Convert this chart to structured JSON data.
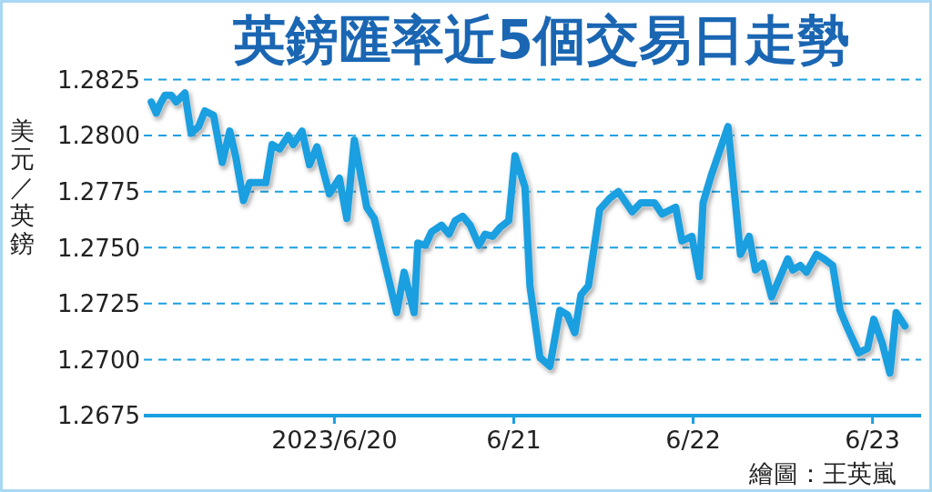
{
  "chart_data": {
    "type": "line",
    "title": "英鎊匯率近5個交易日走勢",
    "ylabel": "美元／英鎊",
    "annotations": [
      "繪圖：王英嵐"
    ],
    "x": [
      "2023-06-18T23:30",
      "2023-06-19T00:10",
      "2023-06-19T00:40",
      "2023-06-19T01:20",
      "2023-06-19T02:10",
      "2023-06-19T02:50",
      "2023-06-19T04:00",
      "2023-06-19T04:50",
      "2023-06-19T05:50",
      "2023-06-19T06:40",
      "2023-06-19T07:50",
      "2023-06-19T09:00",
      "2023-06-19T10:00",
      "2023-06-19T10:50",
      "2023-06-19T11:50",
      "2023-06-19T12:40",
      "2023-06-19T13:40",
      "2023-06-19T14:50",
      "2023-06-19T15:40",
      "2023-06-19T16:40",
      "2023-06-19T17:50",
      "2023-06-19T18:30",
      "2023-06-19T19:40",
      "2023-06-19T20:40",
      "2023-06-19T21:40",
      "2023-06-19T23:20",
      "2023-06-20T00:40",
      "2023-06-20T01:40",
      "2023-06-20T02:40",
      "2023-06-20T04:20",
      "2023-06-20T05:20",
      "2023-06-20T08:20",
      "2023-06-20T09:20",
      "2023-06-20T10:40",
      "2023-06-20T11:10",
      "2023-06-20T12:10",
      "2023-06-20T13:00",
      "2023-06-20T14:20",
      "2023-06-20T15:20",
      "2023-06-20T16:10",
      "2023-06-20T17:10",
      "2023-06-20T18:10",
      "2023-06-20T19:20",
      "2023-06-20T20:10",
      "2023-06-20T21:10",
      "2023-06-20T22:10",
      "2023-06-20T23:20",
      "2023-06-21T00:10",
      "2023-06-21T01:30",
      "2023-06-21T02:10",
      "2023-06-21T03:30",
      "2023-06-21T04:50",
      "2023-06-21T06:10",
      "2023-06-21T07:10",
      "2023-06-21T08:10",
      "2023-06-21T09:00",
      "2023-06-21T10:00",
      "2023-06-21T11:30",
      "2023-06-21T12:50",
      "2023-06-21T14:00",
      "2023-06-21T15:50",
      "2023-06-21T17:00",
      "2023-06-21T18:50",
      "2023-06-21T19:50",
      "2023-06-21T21:40",
      "2023-06-21T22:30",
      "2023-06-21T23:50",
      "2023-06-22T00:50",
      "2023-06-22T01:20",
      "2023-06-22T02:30",
      "2023-06-22T04:40",
      "2023-06-22T06:20",
      "2023-06-22T07:30",
      "2023-06-22T08:20",
      "2023-06-22T09:20",
      "2023-06-22T10:30",
      "2023-06-22T12:40",
      "2023-06-22T13:20",
      "2023-06-22T14:20",
      "2023-06-22T15:10",
      "2023-06-22T16:30",
      "2023-06-22T17:30",
      "2023-06-22T18:40",
      "2023-06-22T19:40",
      "2023-06-22T20:40",
      "2023-06-22T22:10",
      "2023-06-22T23:20",
      "2023-06-23T00:10",
      "2023-06-23T01:20",
      "2023-06-23T02:20",
      "2023-06-23T03:10",
      "2023-06-23T04:20"
    ],
    "series": [
      {
        "color": "#1a9fe0",
        "values": [
          1.2815,
          1.281,
          1.2814,
          1.2818,
          1.2818,
          1.2815,
          1.2819,
          1.2801,
          1.2804,
          1.2811,
          1.2809,
          1.2788,
          1.2802,
          1.279,
          1.2771,
          1.2779,
          1.2779,
          1.2779,
          1.2796,
          1.2794,
          1.28,
          1.2796,
          1.2802,
          1.2787,
          1.2795,
          1.2774,
          1.2781,
          1.2763,
          1.2798,
          1.2768,
          1.2763,
          1.2721,
          1.2739,
          1.2721,
          1.2752,
          1.2751,
          1.2757,
          1.276,
          1.2756,
          1.2762,
          1.2764,
          1.276,
          1.2751,
          1.2756,
          1.2755,
          1.2759,
          1.2762,
          1.2791,
          1.2777,
          1.2733,
          1.2701,
          1.2697,
          1.2722,
          1.272,
          1.2712,
          1.2729,
          1.2733,
          1.2767,
          1.2772,
          1.2775,
          1.2766,
          1.277,
          1.277,
          1.2765,
          1.2768,
          1.2753,
          1.2755,
          1.2737,
          1.277,
          1.2783,
          1.2804,
          1.2747,
          1.2755,
          1.274,
          1.2743,
          1.2728,
          1.2745,
          1.274,
          1.2742,
          1.2739,
          1.2747,
          1.2745,
          1.2742,
          1.2722,
          1.2714,
          1.2703,
          1.2705,
          1.2718,
          1.2707,
          1.2694,
          1.2721,
          1.2715
        ]
      }
    ],
    "xlim": [
      "2023-06-18T22:30",
      "2023-06-23T06:30"
    ],
    "xticks": [
      {
        "value": "2023-06-20",
        "label": "2023/6/20"
      },
      {
        "value": "2023-06-21",
        "label": "6/21"
      },
      {
        "value": "2023-06-22",
        "label": "6/22"
      },
      {
        "value": "2023-06-23",
        "label": "6/23"
      }
    ],
    "ylim": [
      1.2675,
      1.2825
    ],
    "yticks": [
      1.2675,
      {
        "value": 1.27,
        "label": "1.2700"
      },
      1.2725,
      {
        "value": 1.275,
        "label": "1.2750"
      },
      1.2775,
      {
        "value": 1.28,
        "label": "1.2800"
      },
      1.2825
    ],
    "grid": "y",
    "line_style": "solid"
  }
}
